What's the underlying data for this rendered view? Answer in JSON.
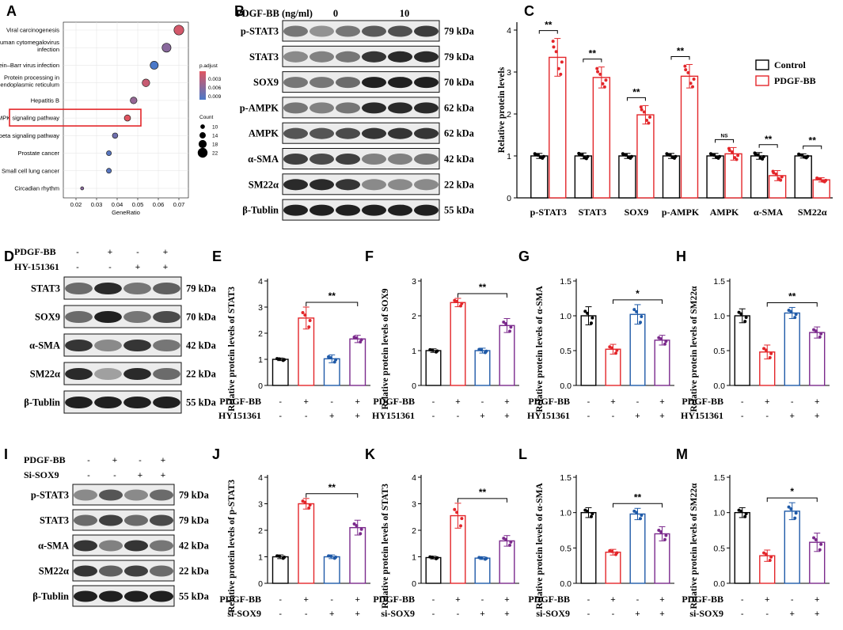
{
  "panel_labels": [
    "A",
    "B",
    "C",
    "D",
    "E",
    "F",
    "G",
    "H",
    "I",
    "J",
    "K",
    "L",
    "M"
  ],
  "panelA": {
    "pathways": [
      "Viral carcinogenesis",
      "Human cytomegalovirus infection",
      "Epstein–Barr virus infection",
      "Protein processing in endoplasmic reticulum",
      "Hepatitis B",
      "AMPK signaling pathway",
      "TGF–beta signaling pathway",
      "Prostate cancer",
      "Small cell lung cancer",
      "Circadian rhythm"
    ],
    "pathway_lines": [
      [
        "Viral carcinogenesis"
      ],
      [
        "Human cytomegalovirus",
        "infection"
      ],
      [
        "Epstein–Barr virus infection"
      ],
      [
        "Protein processing in",
        "endoplasmic reticulum"
      ],
      [
        "Hepatitis B"
      ],
      [
        "AMPK signaling pathway"
      ],
      [
        "TGF–beta signaling pathway"
      ],
      [
        "Prostate cancer"
      ],
      [
        "Small cell lung cancer"
      ],
      [
        "Circadian rhythm"
      ]
    ],
    "gene_ratio": [
      0.07,
      0.064,
      0.058,
      0.054,
      0.048,
      0.045,
      0.039,
      0.036,
      0.036,
      0.023
    ],
    "count": [
      22,
      20,
      18,
      17,
      15,
      14,
      12,
      11,
      11,
      7
    ],
    "p_adjust": [
      0.003,
      0.006,
      0.0085,
      0.0035,
      0.0055,
      0.0025,
      0.007,
      0.008,
      0.008,
      0.006
    ],
    "highlight": "AMPK signaling pathway",
    "x_ticks": [
      "0.02",
      "0.03",
      "0.04",
      "0.05",
      "0.06",
      "0.07"
    ],
    "xlabel": "GeneRatio",
    "legend_padj_title": "p.adjust",
    "legend_padj_ticks": [
      "0.003",
      "0.006",
      "0.009"
    ],
    "legend_count_title": "Count",
    "legend_count_ticks": [
      "10",
      "14",
      "18",
      "22"
    ]
  },
  "blotB": {
    "header_label": "PDGF-BB (ng/ml)",
    "dose_low": "0",
    "dose_high": "10",
    "rows": [
      {
        "name": "p-STAT3",
        "kda": "79 kDa"
      },
      {
        "name": "STAT3",
        "kda": "79 kDa"
      },
      {
        "name": "SOX9",
        "kda": "70 kDa"
      },
      {
        "name": "p-AMPK",
        "kda": "62 kDa"
      },
      {
        "name": "AMPK",
        "kda": "62 kDa"
      },
      {
        "name": "α-SMA",
        "kda": "42 kDa"
      },
      {
        "name": "SM22α",
        "kda": "22 kDa"
      },
      {
        "name": "β-Tublin",
        "kda": "55 kDa"
      }
    ]
  },
  "chart_data": [
    {
      "panel": "C",
      "type": "bar",
      "ylabel": "Relative protein levels",
      "ylim": [
        0,
        4
      ],
      "yticks": [
        0,
        1,
        2,
        3,
        4
      ],
      "categories": [
        "p-STAT3",
        "STAT3",
        "SOX9",
        "p-AMPK",
        "AMPK",
        "α-SMA",
        "SM22α"
      ],
      "series": [
        {
          "name": "Control",
          "color": "#000000",
          "values": [
            1,
            1,
            1,
            1,
            1,
            1,
            1
          ],
          "sd": [
            0.06,
            0.07,
            0.06,
            0.06,
            0.06,
            0.08,
            0.05
          ]
        },
        {
          "name": "PDGF-BB",
          "color": "#e3262a",
          "values": [
            3.35,
            2.87,
            1.98,
            2.9,
            1.05,
            0.53,
            0.43
          ],
          "sd": [
            0.45,
            0.25,
            0.22,
            0.28,
            0.15,
            0.12,
            0.05
          ]
        }
      ],
      "significance": [
        "**",
        "**",
        "**",
        "**",
        "NS",
        "**",
        "**"
      ],
      "legend": [
        "Control",
        "PDGF-BB"
      ]
    },
    {
      "panel": "E",
      "type": "bar",
      "ylabel": "Relative protein levels of STAT3",
      "ylim": [
        0,
        4
      ],
      "yticks": [
        0,
        1,
        2,
        3,
        4
      ],
      "values": [
        1.0,
        2.58,
        1.02,
        1.78
      ],
      "sd": [
        0.05,
        0.42,
        0.15,
        0.14
      ],
      "significance": "**",
      "conditions": [
        "PDGF-BB",
        "HY151361"
      ]
    },
    {
      "panel": "F",
      "type": "bar",
      "ylabel": "Relative protein levels of SOX9",
      "ylim": [
        0,
        3
      ],
      "yticks": [
        0,
        1,
        2,
        3
      ],
      "values": [
        1.0,
        2.38,
        1.0,
        1.72
      ],
      "sd": [
        0.05,
        0.12,
        0.07,
        0.2
      ],
      "significance": "**",
      "conditions": [
        "PDGF-BB",
        "HY151361"
      ]
    },
    {
      "panel": "G",
      "type": "bar",
      "ylabel": "Relative protein levels of α-SMA",
      "ylim": [
        0,
        1.5
      ],
      "yticks": [
        0.0,
        0.5,
        1.0,
        1.5
      ],
      "values": [
        1.0,
        0.52,
        1.02,
        0.65
      ],
      "sd": [
        0.13,
        0.07,
        0.14,
        0.07
      ],
      "significance": "*",
      "conditions": [
        "PDGF-BB",
        "HY151361"
      ]
    },
    {
      "panel": "H",
      "type": "bar",
      "ylabel": "Relative protein levels of SM22α",
      "ylim": [
        0,
        1.5
      ],
      "yticks": [
        0.0,
        0.5,
        1.0,
        1.5
      ],
      "values": [
        1.0,
        0.48,
        1.04,
        0.76
      ],
      "sd": [
        0.1,
        0.1,
        0.08,
        0.08
      ],
      "significance": "**",
      "conditions": [
        "PDGF-BB",
        "HY151361"
      ]
    },
    {
      "panel": "J",
      "type": "bar",
      "ylabel": "Relative protein levels of p-STAT3",
      "ylim": [
        0,
        4
      ],
      "yticks": [
        0,
        1,
        2,
        3,
        4
      ],
      "values": [
        1.0,
        3.0,
        1.0,
        2.1
      ],
      "sd": [
        0.07,
        0.2,
        0.07,
        0.28
      ],
      "significance": "**",
      "conditions": [
        "PDGF-BB",
        "si-SOX9"
      ]
    },
    {
      "panel": "K",
      "type": "bar",
      "ylabel": "Relative protein levels of STAT3",
      "ylim": [
        0,
        4
      ],
      "yticks": [
        0,
        1,
        2,
        3,
        4
      ],
      "values": [
        0.97,
        2.55,
        0.95,
        1.6
      ],
      "sd": [
        0.05,
        0.47,
        0.05,
        0.2
      ],
      "significance": "**",
      "conditions": [
        "PDGF-BB",
        "si-SOX9"
      ]
    },
    {
      "panel": "L",
      "type": "bar",
      "ylabel": "Relative protein levels of α-SMA",
      "ylim": [
        0,
        1.5
      ],
      "yticks": [
        0.0,
        0.5,
        1.0,
        1.5
      ],
      "values": [
        1.0,
        0.44,
        0.98,
        0.7
      ],
      "sd": [
        0.07,
        0.04,
        0.08,
        0.1
      ],
      "significance": "**",
      "conditions": [
        "PDGF-BB",
        "si-SOX9"
      ]
    },
    {
      "panel": "M",
      "type": "bar",
      "ylabel": "Relative protein levels of SM22α",
      "ylim": [
        0,
        1.5
      ],
      "yticks": [
        0.0,
        0.5,
        1.0,
        1.5
      ],
      "values": [
        1.0,
        0.39,
        1.02,
        0.58
      ],
      "sd": [
        0.07,
        0.08,
        0.12,
        0.13
      ],
      "significance": "*",
      "conditions": [
        "PDGF-BB",
        "si-SOX9"
      ]
    }
  ],
  "blotD": {
    "conditions": [
      {
        "name": "PDGF-BB",
        "signs": [
          "-",
          "+",
          "-",
          "+"
        ]
      },
      {
        "name": "HY-151361",
        "signs": [
          "-",
          "-",
          "+",
          "+"
        ]
      }
    ],
    "rows": [
      {
        "name": "STAT3",
        "kda": "79 kDa"
      },
      {
        "name": "SOX9",
        "kda": "70 kDa"
      },
      {
        "name": "α-SMA",
        "kda": "42 kDa"
      },
      {
        "name": "SM22α",
        "kda": "22 kDa"
      },
      {
        "name": "β-Tublin",
        "kda": "55 kDa"
      }
    ]
  },
  "blotI": {
    "conditions": [
      {
        "name": "PDGF-BB",
        "signs": [
          "-",
          "+",
          "-",
          "+"
        ]
      },
      {
        "name": "Si-SOX9",
        "signs": [
          "-",
          "-",
          "+",
          "+"
        ]
      }
    ],
    "rows": [
      {
        "name": "p-STAT3",
        "kda": "79 kDa"
      },
      {
        "name": "STAT3",
        "kda": "79 kDa"
      },
      {
        "name": "α-SMA",
        "kda": "42 kDa"
      },
      {
        "name": "SM22α",
        "kda": "22 kDa"
      },
      {
        "name": "β-Tublin",
        "kda": "55 kDa"
      }
    ]
  },
  "group_signs": {
    "row1": [
      "-",
      "+",
      "-",
      "+"
    ],
    "row2": [
      "-",
      "-",
      "+",
      "+"
    ]
  },
  "colors": {
    "control": "#000000",
    "pdgf": "#e3262a",
    "inhibitor": "#1f5aa8",
    "combo": "#7b2a8c",
    "highlight_box": "#e3262a",
    "padj_high": "#e05561",
    "padj_low": "#4a78c8"
  }
}
